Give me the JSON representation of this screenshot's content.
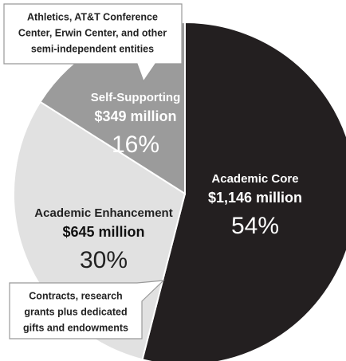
{
  "chart_data": {
    "type": "pie",
    "categories": [
      "Academic Core",
      "Academic Enhancement",
      "Self-Supporting"
    ],
    "values": [
      54,
      30,
      16
    ],
    "value_labels": [
      "54%",
      "30%",
      "16%"
    ],
    "amounts": [
      "$1,146 million",
      "$645 million",
      "$349 million"
    ],
    "colors": [
      "#231f20",
      "#e1e1e1",
      "#9b9b9b"
    ],
    "annotations": [
      {
        "lines": [
          "Athletics, AT&T Conference",
          "Center, Erwin Center, and other",
          "semi-independent entities"
        ]
      },
      {
        "lines": [
          "Contracts, research",
          "grants plus dedicated",
          "gifts and endowments"
        ]
      }
    ]
  }
}
